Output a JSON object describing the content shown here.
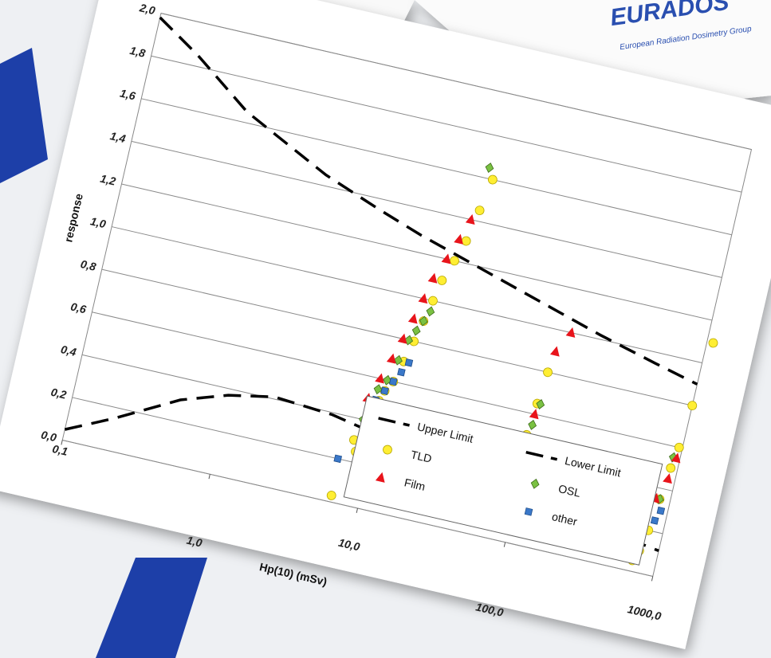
{
  "backdrop": {
    "logo": "EURADOS",
    "caption": "European Radiation Dosimetry Group"
  },
  "chart_data": {
    "type": "scatter",
    "x_label": "Hp(10)  (mSv)",
    "y_label": "response",
    "x_scale": "log",
    "xlim": [
      0.1,
      1000
    ],
    "ylim": [
      0,
      2
    ],
    "grid": true,
    "legend": "lower right",
    "xticks": [
      {
        "value": 0.1,
        "label": "0,1"
      },
      {
        "value": 1,
        "label": "1,0"
      },
      {
        "value": 10,
        "label": "10,0"
      },
      {
        "value": 100,
        "label": "100,0"
      },
      {
        "value": 1000,
        "label": "1000,0"
      }
    ],
    "yticks": [
      {
        "value": 0,
        "label": "0,0"
      },
      {
        "value": 0.2,
        "label": "0,2"
      },
      {
        "value": 0.4,
        "label": "0,4"
      },
      {
        "value": 0.6,
        "label": "0,6"
      },
      {
        "value": 0.8,
        "label": "0,8"
      },
      {
        "value": 1,
        "label": "1,0"
      },
      {
        "value": 1.2,
        "label": "1,2"
      },
      {
        "value": 1.4,
        "label": "1,4"
      },
      {
        "value": 1.6,
        "label": "1,6"
      },
      {
        "value": 1.8,
        "label": "1,8"
      },
      {
        "value": 2,
        "label": "2,0"
      }
    ],
    "series": [
      {
        "name": "Upper Limit",
        "marker": "dash",
        "color": "#000000",
        "x": [
          0.1,
          0.2,
          0.5,
          1,
          2,
          5,
          10,
          20,
          50,
          100,
          200,
          500,
          1000
        ],
        "values": [
          1.98,
          1.85,
          1.65,
          1.55,
          1.45,
          1.35,
          1.28,
          1.22,
          1.14,
          1.08,
          1.02,
          0.95,
          0.9
        ]
      },
      {
        "name": "Lower Limit",
        "marker": "dash",
        "color": "#000000",
        "x": [
          0.1,
          0.2,
          0.5,
          1,
          2,
          5,
          10,
          20,
          50,
          100,
          200,
          500,
          1000
        ],
        "values": [
          0.05,
          0.15,
          0.3,
          0.37,
          0.41,
          0.39,
          0.35,
          0.31,
          0.26,
          0.22,
          0.19,
          0.15,
          0.12
        ]
      },
      {
        "name": "TLD",
        "marker": "circle",
        "color": "#ffee33",
        "x": [
          7.5,
          8,
          8.5,
          9,
          9.5,
          10,
          11,
          12,
          13,
          14,
          15,
          16,
          18,
          20,
          22,
          24,
          80,
          85,
          90,
          95,
          100,
          105,
          700,
          750,
          800,
          850,
          900,
          950,
          1000,
          1100,
          6.5
        ],
        "values": [
          0.3,
          0.25,
          0.35,
          0.45,
          0.5,
          0.55,
          0.6,
          0.7,
          0.8,
          0.9,
          1.0,
          1.1,
          1.2,
          1.3,
          1.45,
          1.6,
          0.1,
          0.2,
          0.35,
          0.5,
          0.65,
          0.8,
          0.05,
          0.1,
          0.2,
          0.35,
          0.5,
          0.6,
          0.8,
          1.1,
          0.03
        ]
      },
      {
        "name": "OSL",
        "marker": "diamond",
        "color": "#7ac142",
        "x": [
          8,
          9,
          10,
          11,
          12,
          13,
          14,
          15,
          22,
          95,
          100,
          105,
          850,
          900
        ],
        "values": [
          0.4,
          0.55,
          0.6,
          0.7,
          0.8,
          0.85,
          0.9,
          0.95,
          1.65,
          0.4,
          0.55,
          0.65,
          0.35,
          0.55
        ]
      },
      {
        "name": "Film",
        "marker": "triangle",
        "color": "#e8141b",
        "x": [
          8,
          9,
          10,
          11,
          12,
          13,
          14,
          16,
          18,
          20,
          100,
          110,
          130,
          800,
          900,
          950
        ],
        "values": [
          0.5,
          0.6,
          0.7,
          0.8,
          0.9,
          1.0,
          1.1,
          1.2,
          1.3,
          1.4,
          0.6,
          0.9,
          1.0,
          0.35,
          0.45,
          0.55
        ]
      },
      {
        "name": "other",
        "marker": "square",
        "color": "#3a78c9",
        "x": [
          6.3,
          9,
          10,
          11,
          12,
          13,
          95,
          100,
          850,
          900
        ],
        "values": [
          0.2,
          0.5,
          0.55,
          0.6,
          0.65,
          0.7,
          0.35,
          0.45,
          0.25,
          0.3
        ]
      }
    ]
  }
}
